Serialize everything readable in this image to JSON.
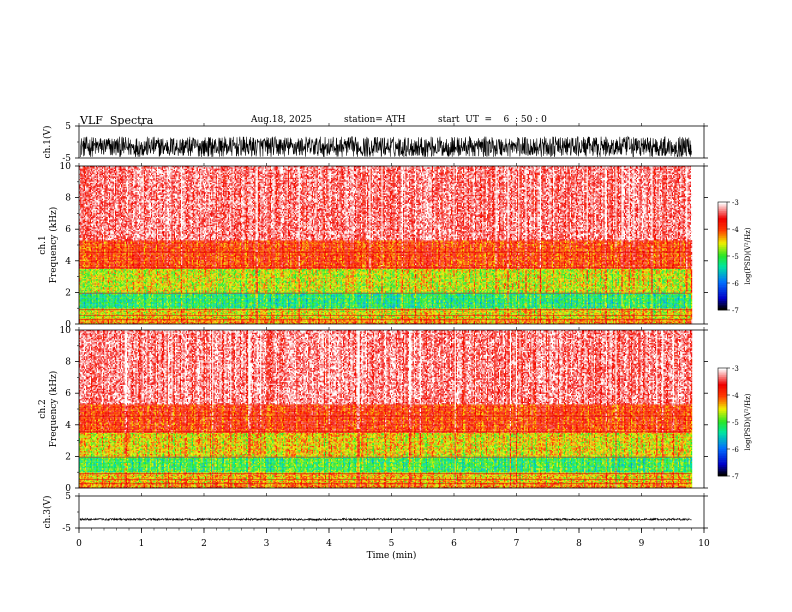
{
  "header": {
    "title": "VLF  Spectra",
    "date": "Aug.18, 2025",
    "station": "station= ATH",
    "start": "start  UT  =    6  : 50 : 0"
  },
  "chart_data": [
    {
      "type": "line",
      "name": "ch1-waveform",
      "ylabel": "ch.1(V)",
      "ylim": [
        -5,
        5
      ],
      "yticks": [
        "5",
        "-5"
      ],
      "xlim": [
        0,
        10
      ],
      "data_extent_min": 9.8,
      "mean": -1.5,
      "amplitude": 3.2,
      "color": "#000000"
    },
    {
      "type": "heatmap",
      "name": "ch1-spectrogram",
      "ylabel": "Frequency  (kHz)",
      "channel_label": "ch.1",
      "ylim": [
        0,
        10
      ],
      "yticks": [
        "0",
        "2",
        "4",
        "6",
        "8",
        "10"
      ],
      "xlim": [
        0,
        10
      ],
      "data_extent_min": 9.8,
      "bands_khz": [
        {
          "from": 0.0,
          "to": 0.3,
          "level": -4.2
        },
        {
          "from": 0.3,
          "to": 1.0,
          "level": -4.5
        },
        {
          "from": 1.0,
          "to": 2.0,
          "level": -5.2
        },
        {
          "from": 2.0,
          "to": 3.5,
          "level": -4.6
        },
        {
          "from": 3.5,
          "to": 5.3,
          "level": -3.9
        },
        {
          "from": 5.3,
          "to": 10.0,
          "level": -3.3
        }
      ],
      "colorbar": {
        "label": "log(PSD)(V²/Hz)",
        "range": [
          -7,
          -3
        ],
        "ticks": [
          "-3",
          "-4",
          "-5",
          "-6",
          "-7"
        ]
      }
    },
    {
      "type": "heatmap",
      "name": "ch2-spectrogram",
      "ylabel": "Frequency  (kHz)",
      "channel_label": "ch.2",
      "ylim": [
        0,
        10
      ],
      "yticks": [
        "0",
        "2",
        "4",
        "6",
        "8",
        "10"
      ],
      "xlim": [
        0,
        10
      ],
      "data_extent_min": 9.8,
      "bands_khz": [
        {
          "from": 0.0,
          "to": 0.3,
          "level": -4.2
        },
        {
          "from": 0.3,
          "to": 1.0,
          "level": -4.4
        },
        {
          "from": 1.0,
          "to": 2.0,
          "level": -5.1
        },
        {
          "from": 2.0,
          "to": 3.5,
          "level": -4.5
        },
        {
          "from": 3.5,
          "to": 5.3,
          "level": -3.9
        },
        {
          "from": 5.3,
          "to": 10.0,
          "level": -3.3
        }
      ],
      "colorbar": {
        "label": "log(PSD)(V²/Hz)",
        "range": [
          -7,
          -3
        ],
        "ticks": [
          "-3",
          "-4",
          "-5",
          "-6",
          "-7"
        ]
      }
    },
    {
      "type": "line",
      "name": "ch3-waveform",
      "ylabel": "ch.3(V)",
      "ylim": [
        -5,
        5
      ],
      "yticks": [
        "5",
        "-5"
      ],
      "xlim": [
        0,
        10
      ],
      "data_extent_min": 9.8,
      "mean": -2.3,
      "amplitude": 0.3,
      "color": "#000000"
    }
  ],
  "xaxis": {
    "label": "Time  (min)",
    "ticks": [
      "0",
      "1",
      "2",
      "3",
      "4",
      "5",
      "6",
      "7",
      "8",
      "9",
      "10"
    ]
  }
}
